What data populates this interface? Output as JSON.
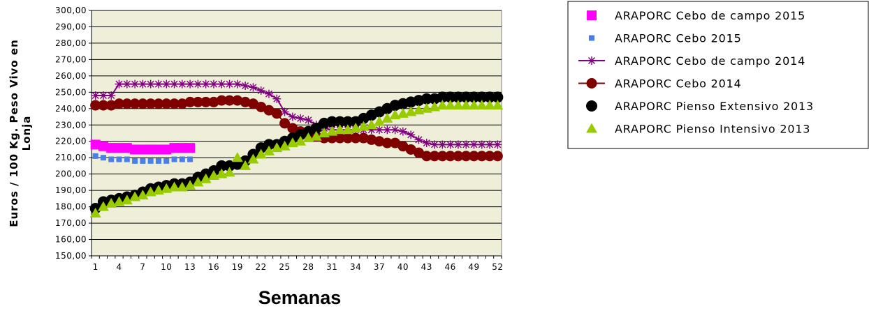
{
  "chart_data": {
    "type": "line",
    "title": "",
    "xlabel": "Semanas",
    "ylabel_line1": "Euros  /  100 Kg. Peso Vivo en",
    "ylabel_line2": "Lonja",
    "ylim": [
      150,
      300
    ],
    "ytick_step": 10,
    "ytick_labels": [
      "150,00",
      "160,00",
      "170,00",
      "180,00",
      "190,00",
      "200,00",
      "210,00",
      "220,00",
      "230,00",
      "240,00",
      "250,00",
      "260,00",
      "270,00",
      "280,00",
      "290,00",
      "300,00"
    ],
    "xlim": [
      1,
      52
    ],
    "xtick_labels": [
      "1",
      "4",
      "7",
      "10",
      "13",
      "16",
      "19",
      "22",
      "25",
      "28",
      "31",
      "34",
      "37",
      "40",
      "43",
      "46",
      "49",
      "52"
    ],
    "xtick_values": [
      1,
      4,
      7,
      10,
      13,
      16,
      19,
      22,
      25,
      28,
      31,
      34,
      37,
      40,
      43,
      46,
      49,
      52
    ],
    "grid": "horizontal",
    "plot_background": "#EEEED9",
    "legend_position": "right",
    "series": [
      {
        "name": "ARAPORC Cebo de campo 2015",
        "color": "#FF00FF",
        "marker": "square",
        "line": false,
        "x": [
          1,
          2,
          3,
          4,
          5,
          6,
          7,
          8,
          9,
          10,
          11,
          12,
          13
        ],
        "values": [
          218,
          217,
          216,
          216,
          216,
          215,
          215,
          215,
          215,
          215,
          216,
          216,
          216
        ]
      },
      {
        "name": "ARAPORC Cebo 2015",
        "color": "#4A7FE8",
        "marker": "small-square",
        "line": false,
        "x": [
          1,
          2,
          3,
          4,
          5,
          6,
          7,
          8,
          9,
          10,
          11,
          12,
          13
        ],
        "values": [
          211,
          210,
          209,
          209,
          209,
          208,
          208,
          208,
          208,
          208,
          209,
          209,
          209
        ]
      },
      {
        "name": "ARAPORC Cebo de campo 2014",
        "color": "#800080",
        "marker": "star",
        "line": true,
        "x": [
          1,
          2,
          3,
          4,
          5,
          6,
          7,
          8,
          9,
          10,
          11,
          12,
          13,
          14,
          15,
          16,
          17,
          18,
          19,
          20,
          21,
          22,
          23,
          24,
          25,
          26,
          27,
          28,
          29,
          30,
          31,
          32,
          33,
          34,
          35,
          36,
          37,
          38,
          39,
          40,
          41,
          42,
          43,
          44,
          45,
          46,
          47,
          48,
          49,
          50,
          51,
          52
        ],
        "values": [
          248,
          248,
          248,
          255,
          255,
          255,
          255,
          255,
          255,
          255,
          255,
          255,
          255,
          255,
          255,
          255,
          255,
          255,
          255,
          254,
          253,
          251,
          249,
          246,
          238,
          235,
          234,
          233,
          230,
          228,
          227,
          227,
          227,
          227,
          227,
          227,
          227,
          227,
          227,
          226,
          224,
          221,
          219,
          218,
          218,
          218,
          218,
          218,
          218,
          218,
          218,
          218
        ]
      },
      {
        "name": "ARAPORC Cebo 2014",
        "color": "#800000",
        "marker": "circle",
        "line": true,
        "x": [
          1,
          2,
          3,
          4,
          5,
          6,
          7,
          8,
          9,
          10,
          11,
          12,
          13,
          14,
          15,
          16,
          17,
          18,
          19,
          20,
          21,
          22,
          23,
          24,
          25,
          26,
          27,
          28,
          29,
          30,
          31,
          32,
          33,
          34,
          35,
          36,
          37,
          38,
          39,
          40,
          41,
          42,
          43,
          44,
          45,
          46,
          47,
          48,
          49,
          50,
          51,
          52
        ],
        "values": [
          242,
          242,
          242,
          243,
          243,
          243,
          243,
          243,
          243,
          243,
          243,
          243,
          244,
          244,
          244,
          244,
          245,
          245,
          245,
          244,
          243,
          241,
          239,
          237,
          231,
          228,
          226,
          225,
          223,
          222,
          222,
          222,
          222,
          222,
          222,
          221,
          220,
          219,
          219,
          217,
          215,
          213,
          211,
          211,
          211,
          211,
          211,
          211,
          211,
          211,
          211,
          211
        ]
      },
      {
        "name": "ARAPORC Pienso Extensivo 2013",
        "color": "#000000",
        "marker": "circle-large",
        "line": false,
        "x": [
          1,
          2,
          3,
          4,
          5,
          6,
          7,
          8,
          9,
          10,
          11,
          12,
          13,
          14,
          15,
          16,
          17,
          18,
          19,
          20,
          21,
          22,
          23,
          24,
          25,
          26,
          27,
          28,
          29,
          30,
          31,
          32,
          33,
          34,
          35,
          36,
          37,
          38,
          39,
          40,
          41,
          42,
          43,
          44,
          45,
          46,
          47,
          48,
          49,
          50,
          51,
          52
        ],
        "values": [
          179,
          183,
          184,
          185,
          186,
          187,
          189,
          191,
          192,
          193,
          194,
          194,
          195,
          198,
          200,
          202,
          205,
          205,
          206,
          208,
          212,
          216,
          218,
          218,
          220,
          222,
          224,
          226,
          228,
          231,
          232,
          232,
          232,
          232,
          234,
          236,
          238,
          240,
          242,
          243,
          244,
          245,
          246,
          246,
          247,
          247,
          247,
          247,
          247,
          247,
          247,
          247
        ]
      },
      {
        "name": "ARAPORC Pienso Intensivo 2013",
        "color": "#99CC00",
        "marker": "triangle",
        "line": false,
        "x": [
          1,
          2,
          3,
          4,
          5,
          6,
          7,
          8,
          9,
          10,
          11,
          12,
          13,
          14,
          15,
          16,
          17,
          18,
          19,
          20,
          21,
          22,
          23,
          24,
          25,
          26,
          27,
          28,
          29,
          30,
          31,
          32,
          33,
          34,
          35,
          36,
          37,
          38,
          39,
          40,
          41,
          42,
          43,
          44,
          45,
          46,
          47,
          48,
          49,
          50,
          51,
          52
        ],
        "values": [
          176,
          180,
          182,
          183,
          184,
          186,
          187,
          189,
          190,
          191,
          192,
          192,
          193,
          195,
          197,
          199,
          200,
          201,
          210,
          205,
          209,
          212,
          214,
          216,
          217,
          219,
          220,
          222,
          223,
          225,
          226,
          227,
          227,
          228,
          229,
          230,
          232,
          234,
          236,
          237,
          238,
          239,
          240,
          241,
          242,
          242,
          242,
          242,
          242,
          242,
          242,
          242
        ]
      }
    ]
  }
}
